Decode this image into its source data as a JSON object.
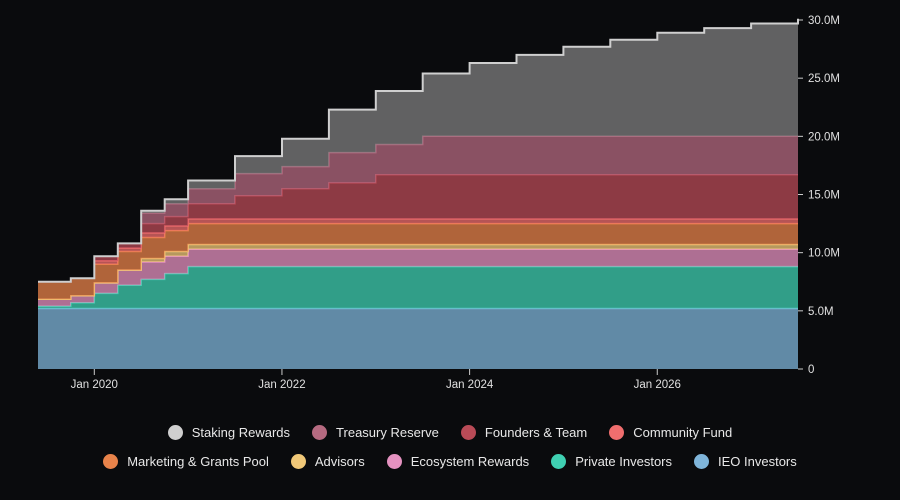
{
  "chart_data": {
    "type": "area",
    "stacked": true,
    "step": true,
    "x_tick_labels": [
      "Jan 2020",
      "Jan 2022",
      "Jan 2024",
      "Jan 2026"
    ],
    "y_tick_labels": [
      "0",
      "5.0M",
      "10.0M",
      "15.0M",
      "20.0M",
      "25.0M",
      "30.0M"
    ],
    "xlim": [
      "2019-07",
      "2027-07"
    ],
    "ylim": [
      0,
      30000000
    ],
    "y_axis_side": "right",
    "x_years": [
      2019.5,
      2019.75,
      2020.0,
      2020.25,
      2020.5,
      2020.75,
      2021.0,
      2021.5,
      2022.0,
      2022.5,
      2023.0,
      2023.5,
      2024.0,
      2024.5,
      2025.0,
      2025.5,
      2026.0,
      2026.5,
      2027.0,
      2027.5
    ],
    "series": [
      {
        "name": "IEO Investors",
        "color": "#7fb5da",
        "values": [
          5.2,
          5.2,
          5.2,
          5.2,
          5.2,
          5.2,
          5.2,
          5.2,
          5.2,
          5.2,
          5.2,
          5.2,
          5.2,
          5.2,
          5.2,
          5.2,
          5.2,
          5.2,
          5.2,
          5.2
        ]
      },
      {
        "name": "Private Investors",
        "color": "#3fd0b2",
        "values": [
          0.2,
          0.5,
          1.3,
          2.0,
          2.5,
          3.0,
          3.6,
          3.6,
          3.6,
          3.6,
          3.6,
          3.6,
          3.6,
          3.6,
          3.6,
          3.6,
          3.6,
          3.6,
          3.6,
          3.6
        ]
      },
      {
        "name": "Ecosystem Rewards",
        "color": "#e592c0",
        "values": [
          0.6,
          0.6,
          0.9,
          1.3,
          1.5,
          1.5,
          1.5,
          1.5,
          1.5,
          1.5,
          1.5,
          1.5,
          1.5,
          1.5,
          1.5,
          1.5,
          1.5,
          1.5,
          1.5,
          1.5
        ]
      },
      {
        "name": "Advisors",
        "color": "#f0c878",
        "values": [
          0.0,
          0.0,
          0.0,
          0.0,
          0.3,
          0.4,
          0.4,
          0.4,
          0.4,
          0.4,
          0.4,
          0.4,
          0.4,
          0.4,
          0.4,
          0.4,
          0.4,
          0.4,
          0.4,
          0.4
        ]
      },
      {
        "name": "Marketing & Grants Pool",
        "color": "#e8834a",
        "values": [
          1.5,
          1.5,
          1.6,
          1.6,
          1.8,
          1.8,
          1.8,
          1.8,
          1.8,
          1.8,
          1.8,
          1.8,
          1.8,
          1.8,
          1.8,
          1.8,
          1.8,
          1.8,
          1.8,
          1.8
        ]
      },
      {
        "name": "Community Fund",
        "color": "#f06e6e",
        "values": [
          0.0,
          0.0,
          0.3,
          0.3,
          0.4,
          0.4,
          0.4,
          0.4,
          0.4,
          0.4,
          0.4,
          0.4,
          0.4,
          0.4,
          0.4,
          0.4,
          0.4,
          0.4,
          0.4,
          0.4
        ]
      },
      {
        "name": "Founders & Team",
        "color": "#b94b57",
        "values": [
          0.0,
          0.0,
          0.4,
          0.4,
          0.8,
          0.8,
          1.3,
          2.0,
          2.6,
          3.1,
          3.8,
          3.8,
          3.8,
          3.8,
          3.8,
          3.8,
          3.8,
          3.8,
          3.8,
          3.8
        ]
      },
      {
        "name": "Treasury Reserve",
        "color": "#b56a80",
        "values": [
          0.0,
          0.0,
          0.0,
          0.0,
          0.9,
          1.1,
          1.3,
          1.9,
          1.9,
          2.6,
          2.6,
          3.3,
          3.3,
          3.3,
          3.3,
          3.3,
          3.3,
          3.3,
          3.3,
          3.3
        ]
      },
      {
        "name": "Staking Rewards",
        "color": "#7f7f7f",
        "line_color": "#cfcfcf",
        "values": [
          0.0,
          0.0,
          0.0,
          0.0,
          0.2,
          0.4,
          0.7,
          1.5,
          2.4,
          3.7,
          4.6,
          5.4,
          6.3,
          7.0,
          7.7,
          8.3,
          8.9,
          9.3,
          9.7,
          10.1
        ]
      }
    ]
  },
  "legend": {
    "row1": [
      "Staking Rewards",
      "Treasury Reserve",
      "Founders & Team",
      "Community Fund"
    ],
    "row2": [
      "Marketing & Grants Pool",
      "Advisors",
      "Ecosystem Rewards",
      "Private Investors",
      "IEO Investors"
    ]
  }
}
